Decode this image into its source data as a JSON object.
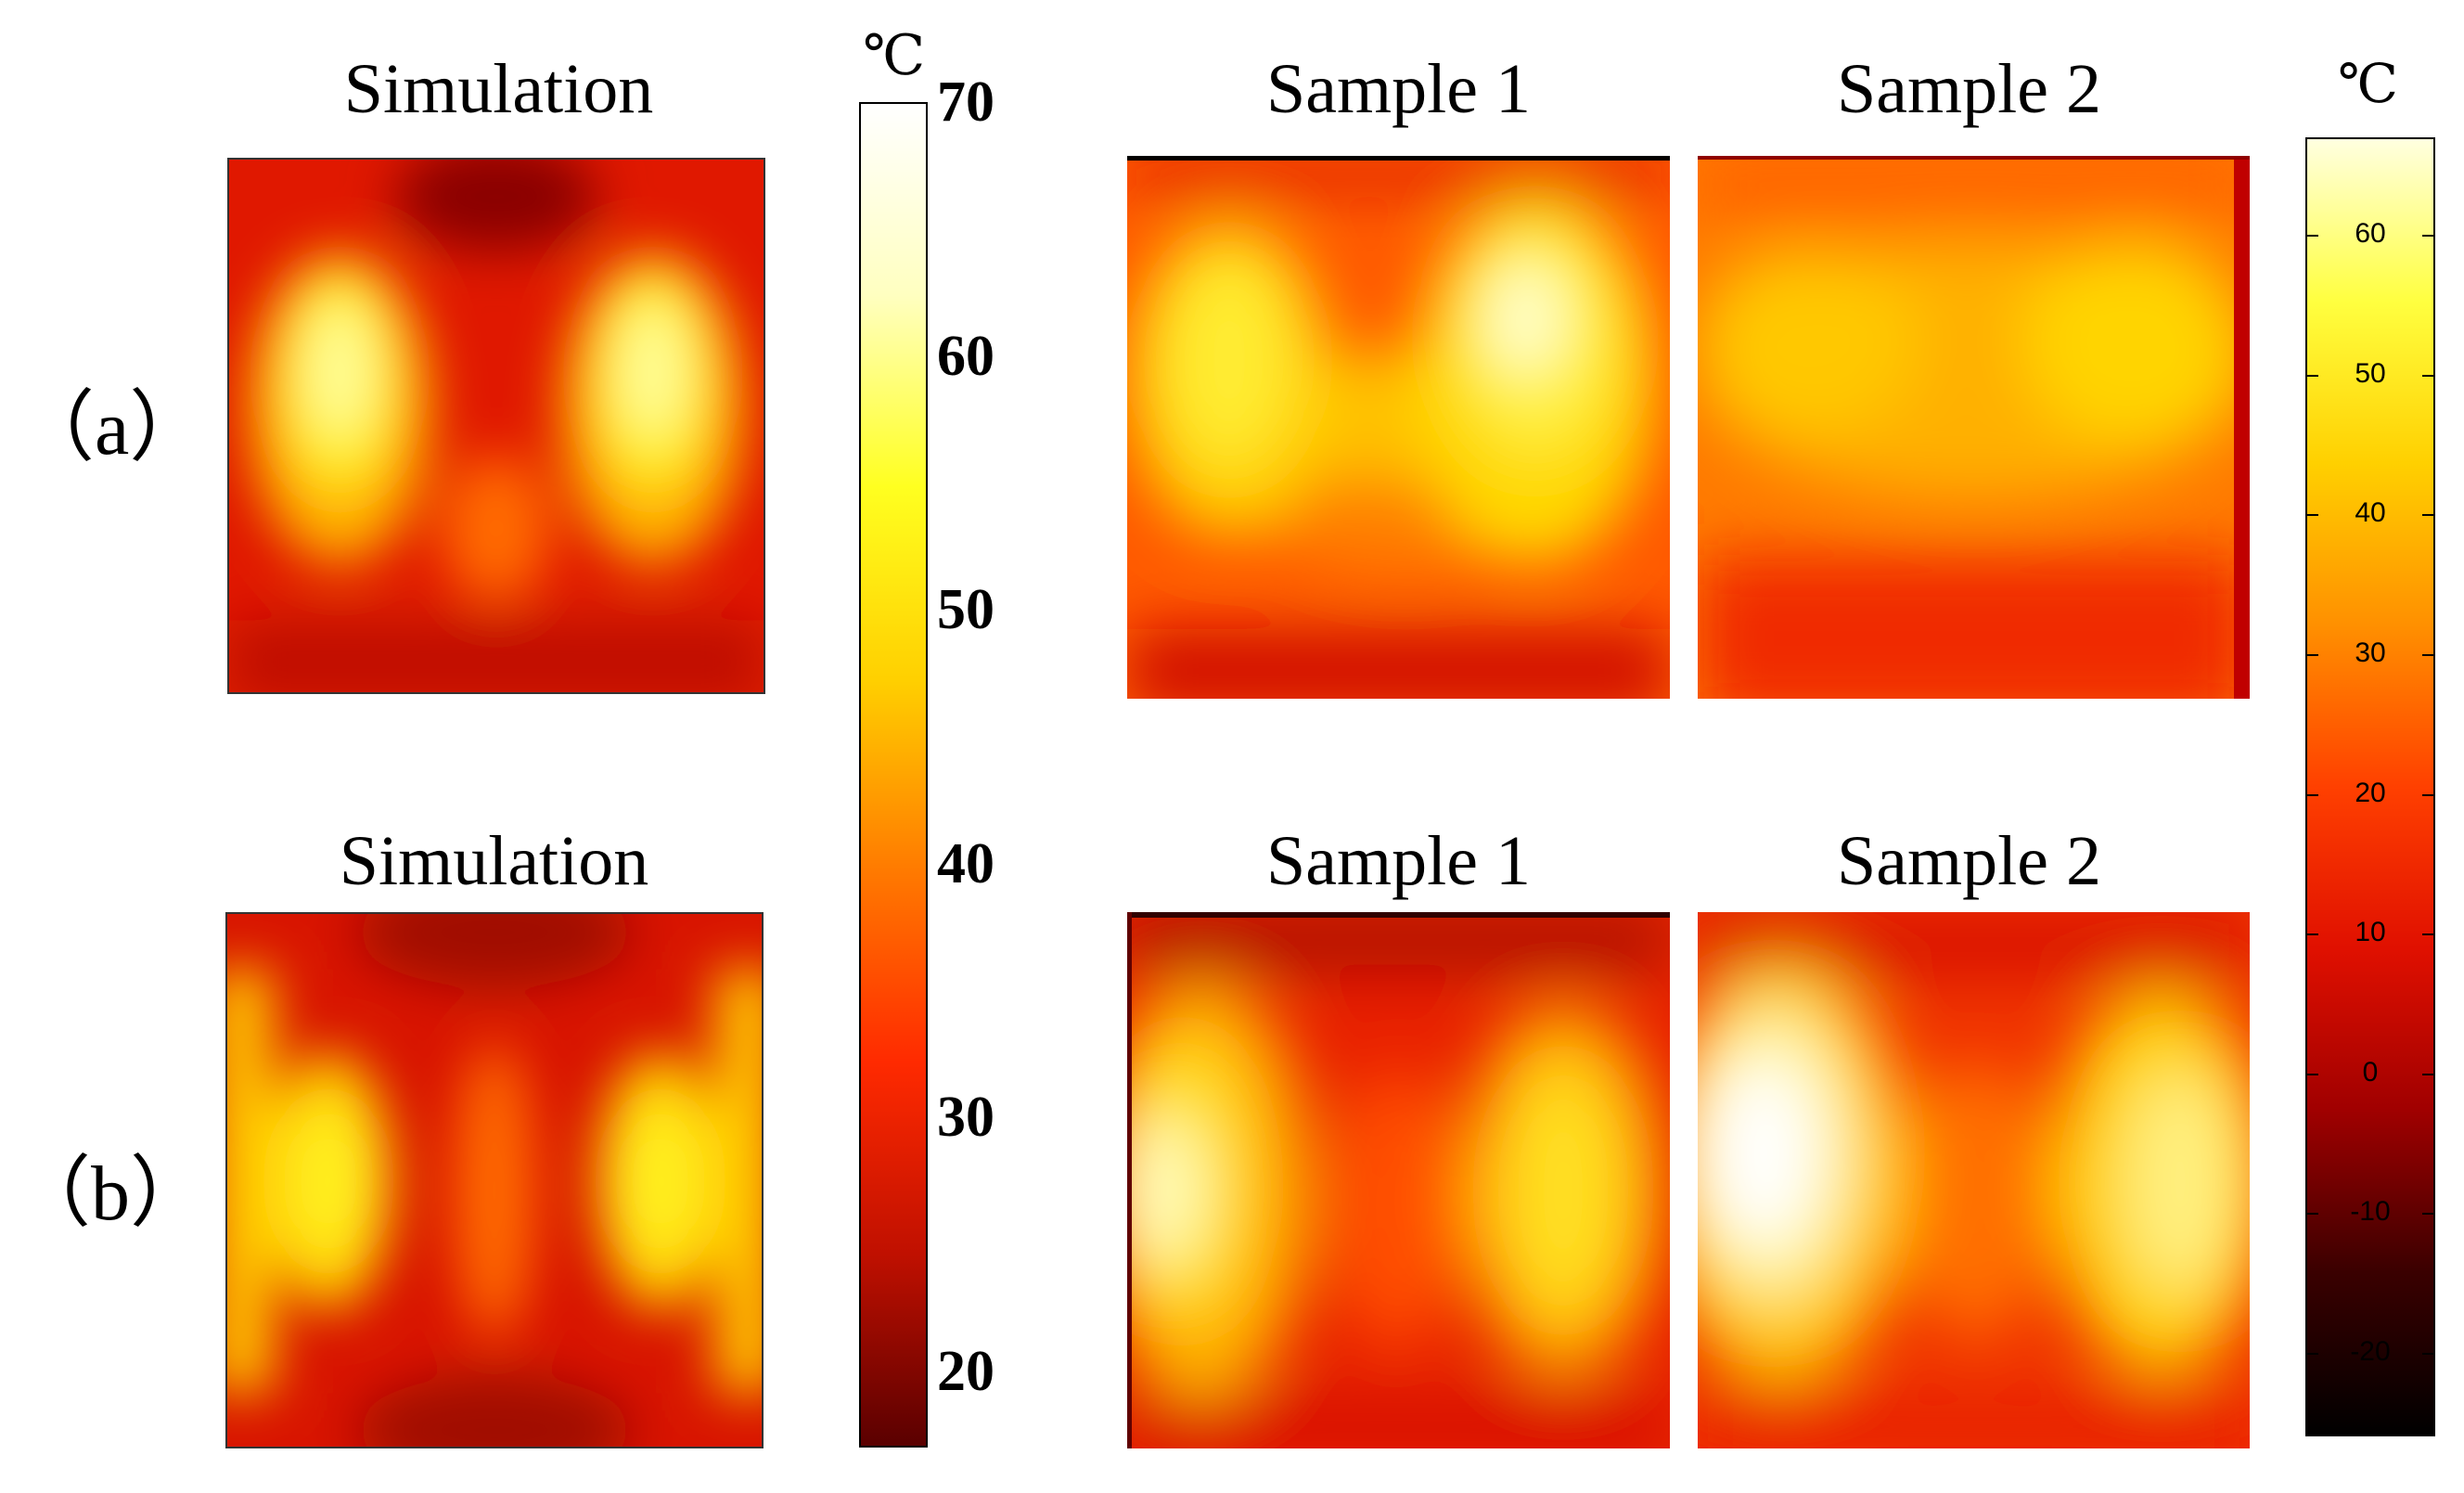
{
  "rows": [
    {
      "label": "（a）",
      "panels": [
        {
          "title": "Simulation",
          "type": "simulation"
        },
        {
          "title": "Sample 1",
          "type": "sample"
        },
        {
          "title": "Sample 2",
          "type": "sample"
        }
      ]
    },
    {
      "label": "（b）",
      "panels": [
        {
          "title": "Simulation",
          "type": "simulation"
        },
        {
          "title": "Sample 1",
          "type": "sample"
        },
        {
          "title": "Sample 2",
          "type": "sample"
        }
      ]
    }
  ],
  "colorbar_simulation": {
    "unit": "℃",
    "min": 17,
    "max": 70,
    "ticks": [
      "70",
      "60",
      "50",
      "40",
      "30",
      "20"
    ],
    "tick_values": [
      70,
      60,
      50,
      40,
      30,
      20
    ],
    "colors": [
      "#5a0000",
      "#c01000",
      "#ff2a00",
      "#ff7a00",
      "#ffd000",
      "#ffff20",
      "#ffffc0",
      "#ffffff"
    ]
  },
  "colorbar_experiment": {
    "unit": "℃",
    "min": -26,
    "max": 67,
    "ticks": [
      "60",
      "50",
      "40",
      "30",
      "20",
      "10",
      "0",
      "-10",
      "-20"
    ],
    "tick_values": [
      60,
      50,
      40,
      30,
      20,
      10,
      0,
      -10,
      -20
    ],
    "colors": [
      "#000000",
      "#3a0000",
      "#a00000",
      "#e01000",
      "#ff4000",
      "#ff9000",
      "#ffd000",
      "#ffff40",
      "#ffffe0"
    ]
  }
}
